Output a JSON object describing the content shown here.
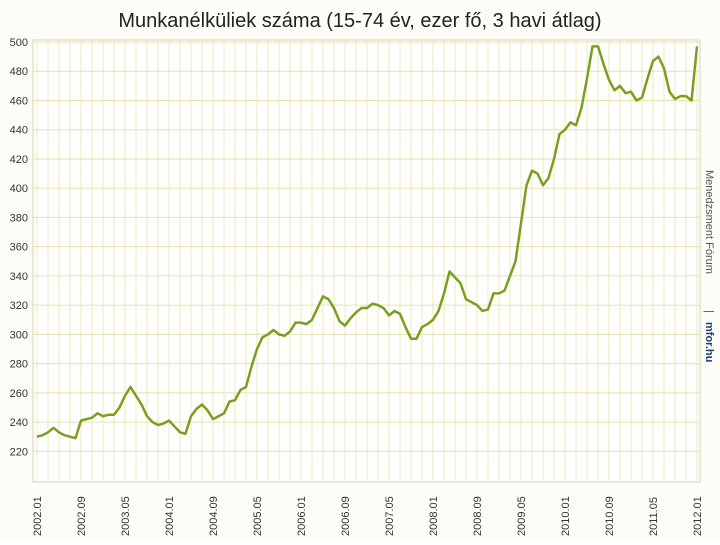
{
  "chart_data": {
    "type": "line",
    "title": "Munkanélküliek száma (15-74 év, ezer fő, 3 havi átlag)",
    "categories": [
      "2002.01",
      null,
      null,
      null,
      null,
      null,
      null,
      null,
      "2002.09",
      null,
      null,
      null,
      null,
      null,
      null,
      null,
      "2003.05",
      null,
      null,
      null,
      null,
      null,
      null,
      null,
      "2004.01",
      null,
      null,
      null,
      null,
      null,
      null,
      null,
      "2004.09",
      null,
      null,
      null,
      null,
      null,
      null,
      null,
      "2005.05",
      null,
      null,
      null,
      null,
      null,
      null,
      null,
      "2006.01",
      null,
      null,
      null,
      null,
      null,
      null,
      null,
      "2006.09",
      null,
      null,
      null,
      null,
      null,
      null,
      null,
      "2007.05",
      null,
      null,
      null,
      null,
      null,
      null,
      null,
      "2008.01",
      null,
      null,
      null,
      null,
      null,
      null,
      null,
      "2008.09",
      null,
      null,
      null,
      null,
      null,
      null,
      null,
      "2009.05",
      null,
      null,
      null,
      null,
      null,
      null,
      null,
      "2010.01",
      null,
      null,
      null,
      null,
      null,
      null,
      null,
      "2010.09",
      null,
      null,
      null,
      null,
      null,
      null,
      null,
      "2011.05",
      null,
      null,
      null,
      null,
      null,
      null,
      null,
      "2012.01"
    ],
    "series": [
      {
        "color": "#78a01e",
        "values": [
          230,
          231,
          233,
          236,
          233,
          231,
          230,
          229,
          241,
          242,
          243,
          246,
          244,
          245,
          245,
          250,
          258,
          264,
          258,
          252,
          244,
          240,
          238,
          239,
          241,
          237,
          233,
          232,
          244,
          249,
          252,
          248,
          242,
          244,
          246,
          254,
          255,
          262,
          264,
          278,
          290,
          298,
          300,
          303,
          300,
          299,
          302,
          308,
          308,
          307,
          310,
          318,
          326,
          324,
          318,
          309,
          306,
          311,
          315,
          318,
          318,
          321,
          320,
          318,
          313,
          316,
          314,
          305,
          297,
          297,
          305,
          307,
          310,
          316,
          328,
          343,
          339,
          335,
          324,
          322,
          320,
          316,
          317,
          328,
          328,
          330,
          340,
          350,
          376,
          402,
          412,
          410,
          402,
          407,
          420,
          437,
          440,
          445,
          443,
          455,
          475,
          497,
          497,
          485,
          474,
          467,
          470,
          465,
          466,
          460,
          462,
          475,
          487,
          490,
          482,
          466,
          461,
          463,
          463,
          460,
          497
        ]
      }
    ],
    "ylim": [
      199,
      500
    ],
    "yticks": [
      220,
      240,
      260,
      280,
      300,
      320,
      340,
      360,
      380,
      400,
      420,
      440,
      460,
      480,
      500
    ],
    "grid": true
  },
  "watermark": {
    "site_name": "Menedzsment Fórum",
    "separator": "|",
    "domain": "mfor.hu"
  }
}
